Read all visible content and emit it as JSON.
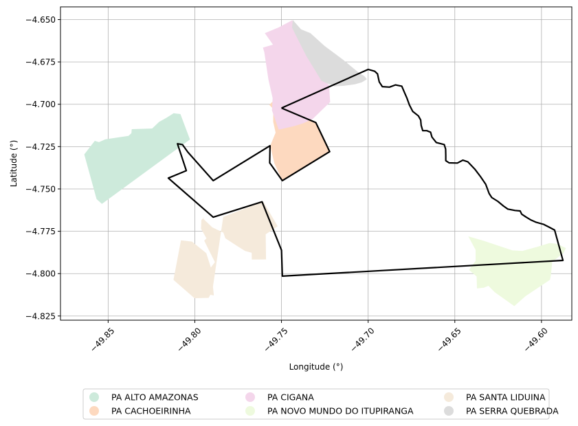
{
  "chart_data": {
    "type": "map",
    "xlabel": "Longitude (°)",
    "ylabel": "Latitude (°)",
    "xlim": [
      -49.8775,
      -49.5825
    ],
    "ylim": [
      -4.8275,
      -4.6425
    ],
    "xticks": [
      -49.85,
      -49.8,
      -49.75,
      -49.7,
      -49.65,
      -49.6
    ],
    "xtick_labels": [
      "−49.85",
      "−49.80",
      "−49.75",
      "−49.70",
      "−49.65",
      "−49.60"
    ],
    "yticks": [
      -4.65,
      -4.675,
      -4.7,
      -4.725,
      -4.75,
      -4.775,
      -4.8,
      -4.825
    ],
    "ytick_labels": [
      "−4.650",
      "−4.675",
      "−4.700",
      "−4.725",
      "−4.750",
      "−4.775",
      "−4.800",
      "−4.825"
    ],
    "grid": true,
    "legend_position": "bottom",
    "legend_columns": 3,
    "regions": [
      {
        "name": "PA ALTO AMAZONAS",
        "color": "#cdeadb",
        "coords": [
          [
            -49.8638,
            -4.7296
          ],
          [
            -49.8577,
            -4.7216
          ],
          [
            -49.8553,
            -4.7224
          ],
          [
            -49.8516,
            -4.7207
          ],
          [
            -49.8383,
            -4.7187
          ],
          [
            -49.8366,
            -4.7171
          ],
          [
            -49.8364,
            -4.7147
          ],
          [
            -49.8246,
            -4.7143
          ],
          [
            -49.8206,
            -4.7104
          ],
          [
            -49.8163,
            -4.708
          ],
          [
            -49.8122,
            -4.7053
          ],
          [
            -49.8083,
            -4.7058
          ],
          [
            -49.8028,
            -4.7208
          ],
          [
            -49.8536,
            -4.7588
          ],
          [
            -49.8567,
            -4.756
          ]
        ]
      },
      {
        "name": "PA CACHOEIRINHA",
        "color": "#fdd9bf",
        "coords": [
          [
            -49.7546,
            -4.6979
          ],
          [
            -49.7571,
            -4.7003
          ],
          [
            -49.7547,
            -4.7028
          ],
          [
            -49.7548,
            -4.7103
          ],
          [
            -49.7534,
            -4.7168
          ],
          [
            -49.7565,
            -4.7245
          ],
          [
            -49.7541,
            -4.7349
          ],
          [
            -49.7495,
            -4.7451
          ],
          [
            -49.7222,
            -4.728
          ],
          [
            -49.7302,
            -4.7108
          ],
          [
            -49.7423,
            -4.7051
          ],
          [
            -49.75,
            -4.7022
          ]
        ]
      },
      {
        "name": "PA CIGANA",
        "color": "#f4d6eb",
        "coords": [
          [
            -49.7596,
            -4.658
          ],
          [
            -49.7518,
            -4.6547
          ],
          [
            -49.7438,
            -4.6504
          ],
          [
            -49.7265,
            -4.6847
          ],
          [
            -49.7226,
            -4.6887
          ],
          [
            -49.7219,
            -4.6987
          ],
          [
            -49.7321,
            -4.7088
          ],
          [
            -49.7377,
            -4.7113
          ],
          [
            -49.7423,
            -4.7128
          ],
          [
            -49.7516,
            -4.715
          ],
          [
            -49.7555,
            -4.7036
          ],
          [
            -49.7551,
            -4.6964
          ],
          [
            -49.7575,
            -4.6855
          ],
          [
            -49.7599,
            -4.6694
          ],
          [
            -49.7607,
            -4.6665
          ],
          [
            -49.7549,
            -4.6648
          ]
        ]
      },
      {
        "name": "PA NOVO MUNDO DO ITUPIRANGA",
        "color": "#eefade",
        "coords": [
          [
            -49.6422,
            -4.778
          ],
          [
            -49.6336,
            -4.7805
          ],
          [
            -49.6168,
            -4.7863
          ],
          [
            -49.611,
            -4.7866
          ],
          [
            -49.6028,
            -4.7843
          ],
          [
            -49.5953,
            -4.782
          ],
          [
            -49.5913,
            -4.7824
          ],
          [
            -49.5859,
            -4.7849
          ],
          [
            -49.5873,
            -4.7879
          ],
          [
            -49.5938,
            -4.793
          ],
          [
            -49.5946,
            -4.8011
          ],
          [
            -49.5951,
            -4.8037
          ],
          [
            -49.6092,
            -4.8133
          ],
          [
            -49.6157,
            -4.8192
          ],
          [
            -49.627,
            -4.811
          ],
          [
            -49.6306,
            -4.8072
          ],
          [
            -49.6333,
            -4.8083
          ],
          [
            -49.6372,
            -4.8087
          ],
          [
            -49.6374,
            -4.8017
          ],
          [
            -49.6418,
            -4.7978
          ],
          [
            -49.638,
            -4.7925
          ],
          [
            -49.638,
            -4.786
          ]
        ]
      },
      {
        "name": "PA SANTA LIDUINA",
        "color": "#f5eadb",
        "coords": [
          [
            -49.7836,
            -4.7665
          ],
          [
            -49.7605,
            -4.7575
          ],
          [
            -49.7522,
            -4.772
          ],
          [
            -49.7591,
            -4.7768
          ],
          [
            -49.7589,
            -4.7916
          ],
          [
            -49.7671,
            -4.7917
          ],
          [
            -49.7672,
            -4.7877
          ],
          [
            -49.771,
            -4.7866
          ],
          [
            -49.7759,
            -4.7835
          ],
          [
            -49.7824,
            -4.7791
          ],
          [
            -49.7835,
            -4.7758
          ],
          [
            -49.7899,
            -4.7727
          ],
          [
            -49.7951,
            -4.7676
          ],
          [
            -49.7943,
            -4.7665
          ],
          [
            -49.7962,
            -4.7684
          ],
          [
            -49.7964,
            -4.7735
          ],
          [
            -49.7933,
            -4.7792
          ],
          [
            -49.7946,
            -4.7805
          ],
          [
            -49.7884,
            -4.7932
          ],
          [
            -49.7942,
            -4.8011
          ],
          [
            -49.8009,
            -4.8098
          ],
          [
            -49.8029,
            -4.8102
          ],
          [
            -49.8047,
            -4.8099
          ],
          [
            -49.789,
            -4.8129
          ],
          [
            -49.7907,
            -4.7965
          ],
          [
            -49.7934,
            -4.7879
          ],
          [
            -49.8016,
            -4.7811
          ],
          [
            -49.808,
            -4.7803
          ],
          [
            -49.8123,
            -4.8037
          ],
          [
            -49.8002,
            -4.8145
          ],
          [
            -49.792,
            -4.8143
          ],
          [
            -49.7899,
            -4.8103
          ]
        ]
      },
      {
        "name": "PA SERRA QUEBRADA",
        "color": "#dcdcdc",
        "coords": [
          [
            -49.7435,
            -4.6502
          ],
          [
            -49.7387,
            -4.6558
          ],
          [
            -49.7333,
            -4.658
          ],
          [
            -49.7252,
            -4.6655
          ],
          [
            -49.7148,
            -4.6734
          ],
          [
            -49.7055,
            -4.6813
          ],
          [
            -49.7022,
            -4.6834
          ],
          [
            -49.7007,
            -4.6852
          ],
          [
            -49.7036,
            -4.687
          ],
          [
            -49.7075,
            -4.6882
          ],
          [
            -49.714,
            -4.6891
          ],
          [
            -49.7196,
            -4.6894
          ],
          [
            -49.7269,
            -4.6862
          ],
          [
            -49.7358,
            -4.6713
          ],
          [
            -49.7439,
            -4.6548
          ]
        ]
      }
    ],
    "outline": {
      "coords": [
        [
          -49.75,
          -4.7022
        ],
        [
          -49.7,
          -4.6794
        ],
        [
          -49.6962,
          -4.6805
        ],
        [
          -49.6946,
          -4.6821
        ],
        [
          -49.6936,
          -4.6868
        ],
        [
          -49.6918,
          -4.6896
        ],
        [
          -49.6877,
          -4.6899
        ],
        [
          -49.6843,
          -4.6886
        ],
        [
          -49.6806,
          -4.6893
        ],
        [
          -49.6796,
          -4.6917
        ],
        [
          -49.6776,
          -4.6965
        ],
        [
          -49.6762,
          -4.7004
        ],
        [
          -49.6743,
          -4.7042
        ],
        [
          -49.671,
          -4.7069
        ],
        [
          -49.6697,
          -4.7093
        ],
        [
          -49.6694,
          -4.7125
        ],
        [
          -49.6685,
          -4.7156
        ],
        [
          -49.6662,
          -4.7156
        ],
        [
          -49.664,
          -4.7165
        ],
        [
          -49.6632,
          -4.7194
        ],
        [
          -49.6607,
          -4.7226
        ],
        [
          -49.6561,
          -4.7238
        ],
        [
          -49.6553,
          -4.7265
        ],
        [
          -49.6552,
          -4.7301
        ],
        [
          -49.6552,
          -4.7333
        ],
        [
          -49.6533,
          -4.7346
        ],
        [
          -49.6485,
          -4.7347
        ],
        [
          -49.6454,
          -4.733
        ],
        [
          -49.6425,
          -4.734
        ],
        [
          -49.6385,
          -4.7383
        ],
        [
          -49.6352,
          -4.7427
        ],
        [
          -49.6322,
          -4.7472
        ],
        [
          -49.6302,
          -4.7527
        ],
        [
          -49.6287,
          -4.7551
        ],
        [
          -49.6252,
          -4.7573
        ],
        [
          -49.6219,
          -4.7601
        ],
        [
          -49.6194,
          -4.7619
        ],
        [
          -49.6153,
          -4.7627
        ],
        [
          -49.6123,
          -4.763
        ],
        [
          -49.6114,
          -4.7649
        ],
        [
          -49.6088,
          -4.7667
        ],
        [
          -49.606,
          -4.7684
        ],
        [
          -49.6033,
          -4.7696
        ],
        [
          -49.5988,
          -4.7709
        ],
        [
          -49.595,
          -4.7729
        ],
        [
          -49.5924,
          -4.7743
        ],
        [
          -49.5876,
          -4.7922
        ],
        [
          -49.7495,
          -4.8015
        ],
        [
          -49.75,
          -4.7862
        ],
        [
          -49.7612,
          -4.7576
        ],
        [
          -49.7894,
          -4.7667
        ],
        [
          -49.8153,
          -4.7436
        ],
        [
          -49.8049,
          -4.7392
        ],
        [
          -49.81,
          -4.7233
        ],
        [
          -49.808,
          -4.7237
        ],
        [
          -49.8071,
          -4.7239
        ],
        [
          -49.804,
          -4.7283
        ],
        [
          -49.7894,
          -4.7451
        ],
        [
          -49.7566,
          -4.7245
        ],
        [
          -49.7568,
          -4.7346
        ],
        [
          -49.7495,
          -4.7451
        ],
        [
          -49.7222,
          -4.728
        ],
        [
          -49.7302,
          -4.7108
        ],
        [
          -49.75,
          -4.7022
        ]
      ]
    }
  }
}
